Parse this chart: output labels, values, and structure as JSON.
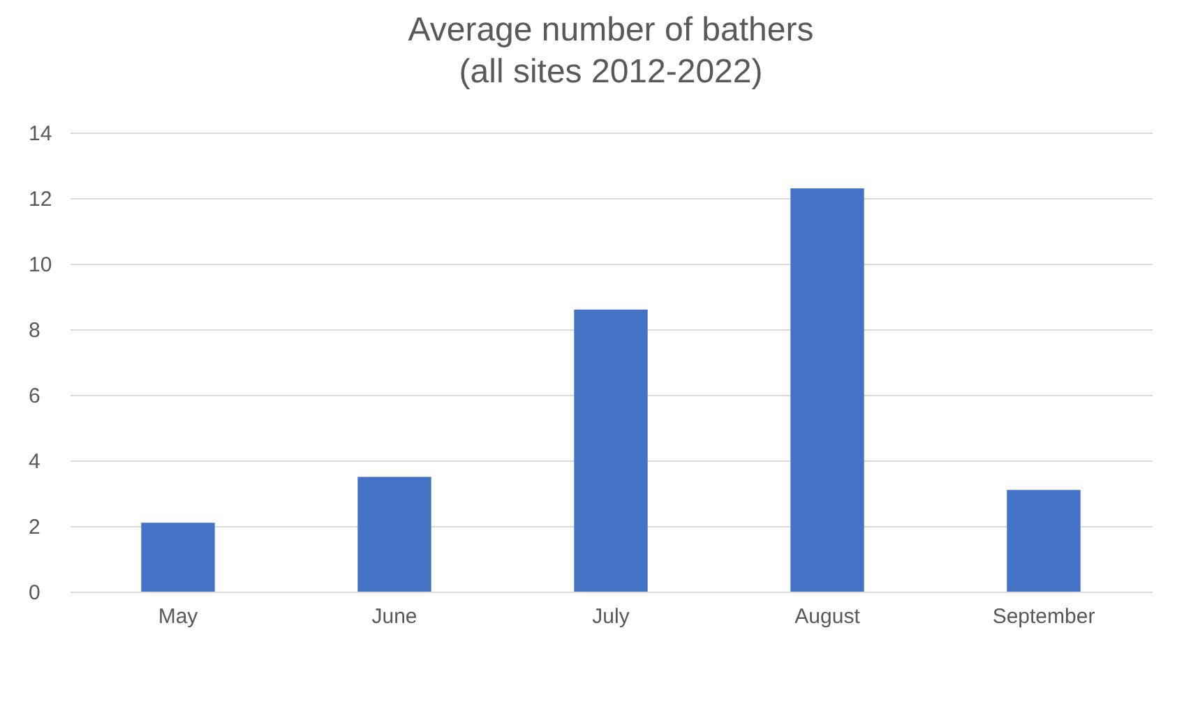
{
  "chart_data": {
    "type": "bar",
    "title": "Average number of bathers",
    "subtitle": "(all sites 2012-2022)",
    "categories": [
      "May",
      "June",
      "July",
      "August",
      "September"
    ],
    "values": [
      2.1,
      3.5,
      8.6,
      12.3,
      3.1
    ],
    "color": "#4472c4",
    "ylim": [
      0,
      14
    ],
    "yticks": [
      0,
      2,
      4,
      6,
      8,
      10,
      12,
      14
    ],
    "grid": "y"
  }
}
